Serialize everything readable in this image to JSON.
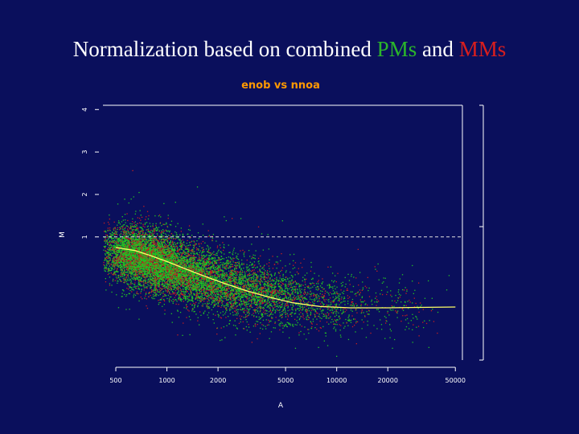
{
  "slide": {
    "title_prefix": "Normalization based on combined ",
    "title_pm": "PMs",
    "title_and": " and ",
    "title_mm": "MMs",
    "pm_color": "#2bb52b",
    "mm_color": "#d81e1e",
    "background": "#0a0f5c"
  },
  "chart_data": {
    "type": "scatter",
    "title": "enob vs nnoa",
    "xlabel": "A",
    "ylabel": "M",
    "x_scale": "log",
    "x_ticks": [
      500,
      1000,
      2000,
      5000,
      10000,
      20000,
      50000
    ],
    "x_tick_labels": [
      "500",
      "1000",
      "2000",
      "5000",
      "10000",
      "20000",
      "50000"
    ],
    "y_ticks": [
      1,
      2,
      3,
      4
    ],
    "y_tick_labels": [
      "1",
      "2",
      "3",
      "4"
    ],
    "xlim": [
      420,
      55000
    ],
    "ylim": [
      -1.9,
      4.1
    ],
    "reference_line": {
      "y": 1,
      "style": "dashed"
    },
    "series": [
      {
        "color": "#22c422"
      },
      {
        "color": "#c81e1e"
      },
      {
        "color": "#ffff66"
      }
    ],
    "clouds": [
      {
        "x": 600,
        "y": 0.65,
        "n": 2200
      },
      {
        "x": 800,
        "y": 0.45,
        "n": 2200
      },
      {
        "x": 1100,
        "y": 0.25,
        "n": 1900
      },
      {
        "x": 1600,
        "y": 0.05,
        "n": 1500
      },
      {
        "x": 2400,
        "y": -0.15,
        "n": 1100
      },
      {
        "x": 3500,
        "y": -0.3,
        "n": 800
      },
      {
        "x": 5000,
        "y": -0.42,
        "n": 550
      },
      {
        "x": 8000,
        "y": -0.55,
        "n": 350
      },
      {
        "x": 12000,
        "y": -0.62,
        "n": 200
      },
      {
        "x": 20000,
        "y": -0.65,
        "n": 100
      },
      {
        "x": 30000,
        "y": -0.65,
        "n": 50
      }
    ],
    "loess_curve": {
      "x": [
        500,
        650,
        800,
        1000,
        1300,
        1700,
        2200,
        3000,
        4000,
        5500,
        8000,
        12000,
        20000,
        30000,
        50000
      ],
      "y": [
        0.75,
        0.68,
        0.56,
        0.42,
        0.24,
        0.06,
        -0.1,
        -0.28,
        -0.42,
        -0.55,
        -0.64,
        -0.67,
        -0.67,
        -0.66,
        -0.65
      ]
    }
  }
}
